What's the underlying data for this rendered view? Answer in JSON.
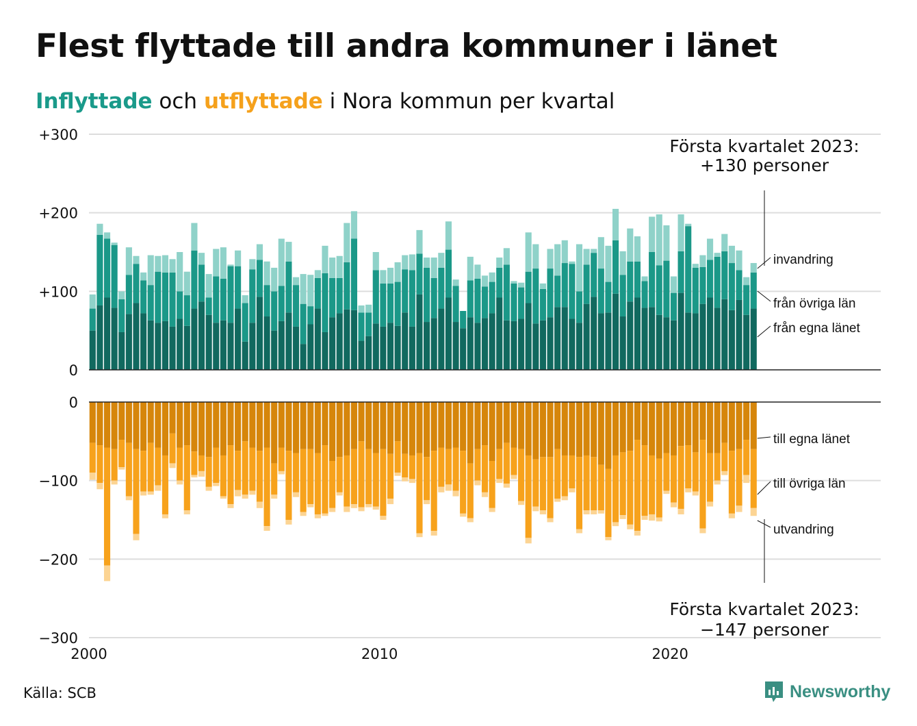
{
  "title": "Flest flyttade till andra kommuner i länet",
  "subtitle": {
    "part1": "Inflyttade",
    "part2": " och ",
    "part3": "utflyttade",
    "part4": " i Nora kommun per kvartal"
  },
  "source": "Källa: SCB",
  "brand": "Newsworthy",
  "colors": {
    "in_own": "#11695f",
    "in_other": "#1b9888",
    "in_immig": "#8fd2c9",
    "out_own": "#d6860b",
    "out_other": "#f7a21c",
    "out_emig": "#fcd493",
    "grid": "#dddddd",
    "axis": "#222222"
  },
  "chart_data": {
    "type": "bar",
    "stacked": true,
    "x_start": 2000,
    "period": "quarter",
    "xlim": [
      2000,
      2027.25
    ],
    "xticks": [
      "2000",
      "2010",
      "2020"
    ],
    "ylim": [
      -300,
      300
    ],
    "yticks_top": [
      "+300",
      "+200",
      "+100",
      "0"
    ],
    "yticks_bottom": [
      "0",
      "−100",
      "−200",
      "−300"
    ],
    "inflow_series": [
      {
        "name": "från egna länet",
        "values": [
          50,
          82,
          92,
          79,
          48,
          71,
          85,
          72,
          63,
          60,
          62,
          55,
          65,
          56,
          78,
          87,
          70,
          60,
          63,
          60,
          78,
          36,
          60,
          93,
          68,
          50,
          62,
          73,
          55,
          33,
          58,
          78,
          48,
          67,
          72,
          77,
          76,
          37,
          43,
          59,
          55,
          60,
          56,
          73,
          55,
          96,
          61,
          66,
          78,
          92,
          61,
          53,
          67,
          60,
          66,
          72,
          92,
          63,
          62,
          65,
          85,
          59,
          63,
          67,
          80,
          80,
          65,
          60,
          84,
          93,
          72,
          73,
          97,
          68,
          87,
          92,
          79,
          80,
          70,
          67,
          63,
          98,
          73,
          72,
          84,
          92,
          79,
          90,
          76,
          89,
          70,
          78
        ]
      },
      {
        "name": "från övriga län",
        "values": [
          28,
          90,
          75,
          80,
          42,
          50,
          50,
          42,
          45,
          65,
          62,
          69,
          35,
          39,
          74,
          47,
          22,
          59,
          53,
          72,
          54,
          49,
          68,
          47,
          40,
          50,
          45,
          65,
          53,
          51,
          23,
          39,
          75,
          50,
          45,
          60,
          91,
          36,
          30,
          68,
          55,
          50,
          56,
          55,
          72,
          52,
          69,
          51,
          52,
          61,
          46,
          22,
          47,
          56,
          40,
          40,
          38,
          71,
          48,
          40,
          40,
          70,
          40,
          62,
          40,
          56,
          70,
          40,
          50,
          56,
          57,
          39,
          68,
          53,
          51,
          46,
          34,
          70,
          63,
          72,
          35,
          53,
          110,
          58,
          47,
          48,
          65,
          61,
          60,
          38,
          38,
          46
        ]
      },
      {
        "name": "invandring",
        "values": [
          18,
          14,
          8,
          3,
          10,
          35,
          10,
          10,
          38,
          20,
          22,
          17,
          50,
          30,
          35,
          15,
          30,
          35,
          40,
          2,
          20,
          10,
          13,
          20,
          30,
          30,
          60,
          25,
          10,
          38,
          40,
          10,
          35,
          26,
          28,
          50,
          35,
          9,
          10,
          23,
          17,
          20,
          25,
          18,
          20,
          30,
          13,
          26,
          19,
          36,
          8,
          0,
          30,
          18,
          14,
          12,
          13,
          21,
          3,
          6,
          50,
          31,
          7,
          25,
          40,
          29,
          3,
          60,
          20,
          5,
          40,
          46,
          40,
          30,
          42,
          32,
          6,
          45,
          65,
          45,
          21,
          47,
          3,
          5,
          15,
          27,
          5,
          22,
          22,
          25,
          10,
          12
        ]
      }
    ],
    "outflow_series": [
      {
        "name": "till egna länet",
        "values": [
          52,
          55,
          58,
          60,
          48,
          52,
          60,
          62,
          52,
          58,
          68,
          40,
          58,
          55,
          63,
          68,
          70,
          58,
          68,
          55,
          62,
          50,
          58,
          62,
          58,
          78,
          58,
          62,
          65,
          60,
          60,
          65,
          55,
          75,
          70,
          68,
          60,
          50,
          60,
          65,
          60,
          66,
          50,
          66,
          68,
          65,
          70,
          62,
          58,
          60,
          58,
          62,
          78,
          60,
          55,
          75,
          60,
          52,
          58,
          60,
          68,
          73,
          70,
          70,
          60,
          68,
          68,
          70,
          68,
          70,
          80,
          85,
          68,
          64,
          62,
          48,
          55,
          68,
          72,
          65,
          68,
          56,
          55,
          64,
          48,
          65,
          65,
          52,
          62,
          60,
          48,
          60
        ]
      },
      {
        "name": "till övriga län",
        "values": [
          38,
          48,
          150,
          40,
          35,
          68,
          108,
          52,
          62,
          48,
          75,
          38,
          42,
          83,
          30,
          20,
          38,
          45,
          52,
          75,
          50,
          68,
          55,
          65,
          100,
          40,
          30,
          88,
          50,
          80,
          70,
          78,
          87,
          60,
          45,
          65,
          70,
          84,
          70,
          68,
          85,
          57,
          40,
          30,
          30,
          102,
          55,
          102,
          50,
          45,
          55,
          80,
          70,
          40,
          60,
          60,
          38,
          52,
          35,
          66,
          105,
          60,
          68,
          78,
          63,
          52,
          42,
          92,
          70,
          68,
          58,
          87,
          85,
          80,
          94,
          116,
          90,
          75,
          75,
          48,
          60,
          80,
          55,
          50,
          113,
          62,
          35,
          36,
          80,
          72,
          45,
          75
        ]
      },
      {
        "name": "utvandring",
        "values": [
          9,
          8,
          20,
          5,
          3,
          5,
          8,
          5,
          4,
          7,
          5,
          6,
          5,
          5,
          3,
          7,
          5,
          4,
          3,
          5,
          8,
          5,
          5,
          8,
          6,
          5,
          4,
          6,
          6,
          5,
          4,
          5,
          3,
          5,
          4,
          7,
          5,
          5,
          4,
          4,
          5,
          7,
          4,
          5,
          5,
          5,
          5,
          6,
          7,
          8,
          7,
          4,
          5,
          6,
          6,
          5,
          5,
          5,
          5,
          5,
          7,
          6,
          5,
          5,
          4,
          5,
          5,
          5,
          5,
          5,
          4,
          4,
          5,
          5,
          6,
          6,
          5,
          8,
          5,
          4,
          6,
          7,
          5,
          5,
          6,
          6,
          5,
          5,
          6,
          8,
          10,
          10
        ]
      }
    ],
    "right_labels_top": [
      "invandring",
      "från övriga län",
      "från egna länet"
    ],
    "right_labels_bottom": [
      "till egna länet",
      "till övriga län",
      "utvandring"
    ],
    "annotation_top": {
      "line1": "Första kvartalet 2023:",
      "line2": "+130 personer"
    },
    "annotation_bottom": {
      "line1": "Första kvartalet 2023:",
      "line2": "−147 personer"
    }
  }
}
